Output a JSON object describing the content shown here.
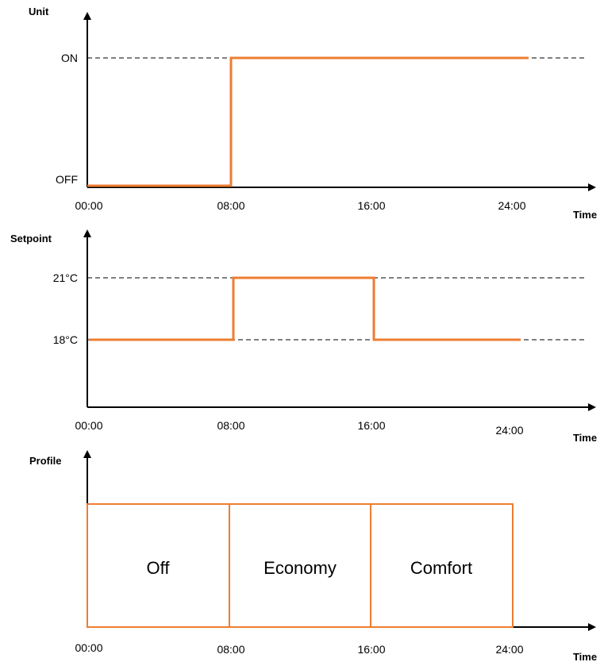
{
  "colors": {
    "line": "#ED7D31",
    "axis": "#000000",
    "background": "#ffffff"
  },
  "unit_chart": {
    "y_title": "Unit",
    "x_title": "Time",
    "levels": [
      "OFF",
      "ON"
    ],
    "x_ticks": [
      "00:00",
      "08:00",
      "16:00",
      "24:00"
    ],
    "steps": [
      {
        "from": "00:00",
        "to": "08:00",
        "value": "OFF"
      },
      {
        "from": "08:00",
        "to": "24:00",
        "value": "ON"
      }
    ]
  },
  "setpoint_chart": {
    "y_title": "Setpoint",
    "x_title": "Time",
    "levels": [
      "18°C",
      "21°C"
    ],
    "x_ticks": [
      "00:00",
      "08:00",
      "16:00",
      "24:00"
    ],
    "steps": [
      {
        "from": "00:00",
        "to": "08:00",
        "value": "18°C"
      },
      {
        "from": "08:00",
        "to": "16:00",
        "value": "21°C"
      },
      {
        "from": "16:00",
        "to": "24:00",
        "value": "18°C"
      }
    ]
  },
  "profile_chart": {
    "y_title": "Profile",
    "x_title": "Time",
    "x_ticks": [
      "00:00",
      "08:00",
      "16:00",
      "24:00"
    ],
    "segments": [
      {
        "from": "00:00",
        "to": "08:00",
        "label": "Off"
      },
      {
        "from": "08:00",
        "to": "16:00",
        "label": "Economy"
      },
      {
        "from": "16:00",
        "to": "24:00",
        "label": "Comfort"
      }
    ]
  }
}
